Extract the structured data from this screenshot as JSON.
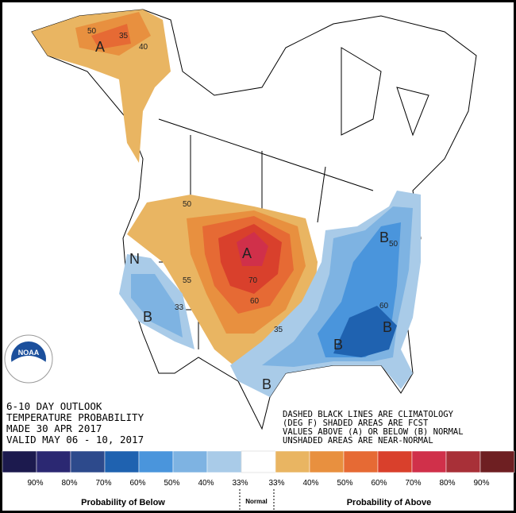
{
  "header": {
    "lines": [
      "6-10 DAY OUTLOOK",
      "TEMPERATURE PROBABILITY",
      "MADE  30 APR 2017",
      "VALID  MAY 06 - 10, 2017"
    ]
  },
  "notes": [
    "DASHED BLACK LINES ARE CLIMATOLOGY",
    "(DEG F) SHADED AREAS ARE FCST",
    "VALUES ABOVE (A) OR BELOW (B) NORMAL",
    "UNSHADED AREAS ARE NEAR-NORMAL"
  ],
  "logo": "NOAA",
  "map_labels": {
    "above": "A",
    "below": "B",
    "normal": "N",
    "contours": [
      "50",
      "35",
      "40",
      "55",
      "60",
      "70",
      "33"
    ]
  },
  "legend": {
    "below": [
      {
        "label": "90%",
        "color": "#1c1a4e"
      },
      {
        "label": "80%",
        "color": "#2b2872"
      },
      {
        "label": "70%",
        "color": "#2d4a8c"
      },
      {
        "label": "60%",
        "color": "#1f62b0"
      },
      {
        "label": "50%",
        "color": "#4a95dc"
      },
      {
        "label": "40%",
        "color": "#7eb3e2"
      },
      {
        "label": "33%",
        "color": "#a9cbe8"
      }
    ],
    "normal_color": "#ffffff",
    "above": [
      {
        "label": "33%",
        "color": "#e9b562"
      },
      {
        "label": "40%",
        "color": "#e8903f"
      },
      {
        "label": "50%",
        "color": "#e66a34"
      },
      {
        "label": "60%",
        "color": "#d9402c"
      },
      {
        "label": "70%",
        "color": "#d0304a"
      },
      {
        "label": "80%",
        "color": "#a83038"
      },
      {
        "label": "90%",
        "color": "#6e1f22"
      }
    ],
    "below_title": "Probability of Below",
    "normal_title": "Normal",
    "above_title": "Probability of Above"
  }
}
